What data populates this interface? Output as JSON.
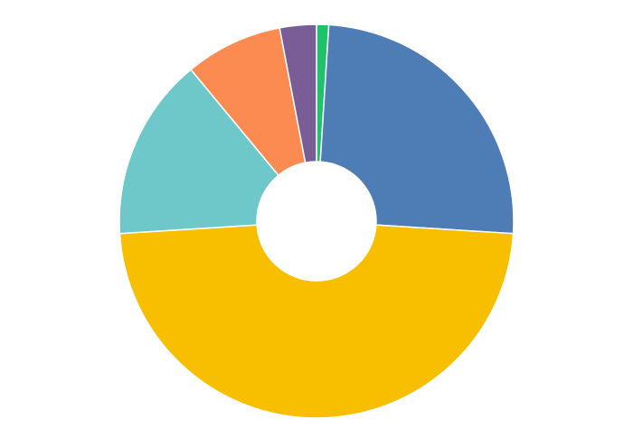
{
  "chart_data": {
    "type": "pie",
    "values": [
      1,
      25,
      48,
      15,
      8,
      3
    ],
    "colors": [
      "#1fc26b",
      "#4e7cb5",
      "#f7bf00",
      "#6ec8ca",
      "#fb8b51",
      "#7a5d97"
    ]
  }
}
